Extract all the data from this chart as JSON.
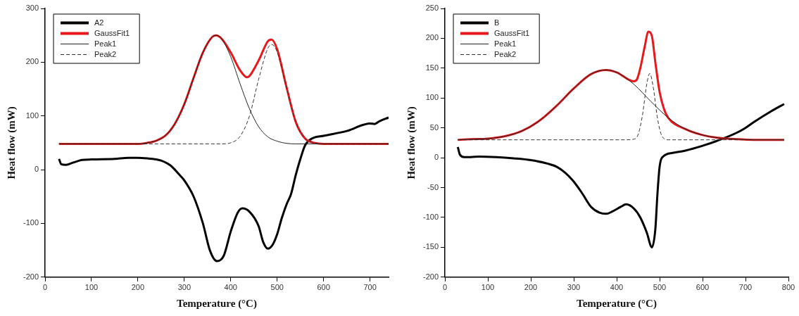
{
  "chart_data": [
    {
      "type": "line",
      "xlabel": "Temperature (°C)",
      "ylabel": "Heat flow (mW)",
      "xlim": [
        0,
        740
      ],
      "xticks": [
        0,
        100,
        200,
        300,
        400,
        500,
        600,
        700
      ],
      "ylim": [
        -200,
        300
      ],
      "yticks": [
        -200,
        -100,
        0,
        100,
        200,
        300
      ],
      "legend": "top left",
      "series": [
        {
          "name": "A2",
          "color": "#000000",
          "x": [
            30,
            35,
            45,
            60,
            80,
            100,
            150,
            180,
            200,
            220,
            240,
            250,
            270,
            290,
            300,
            320,
            340,
            355,
            370,
            385,
            400,
            415,
            425,
            440,
            460,
            470,
            480,
            490,
            500,
            510,
            520,
            530,
            540,
            550,
            560,
            575,
            600,
            650,
            700,
            710,
            720,
            740
          ],
          "values": [
            20,
            10,
            9,
            13,
            18,
            19,
            20,
            22,
            22,
            21,
            19,
            17,
            8,
            -10,
            -20,
            -50,
            -100,
            -150,
            -170,
            -160,
            -115,
            -80,
            -72,
            -78,
            -105,
            -135,
            -147,
            -140,
            -120,
            -90,
            -65,
            -45,
            -10,
            20,
            45,
            58,
            63,
            72,
            86,
            85,
            90,
            97
          ]
        },
        {
          "name": "GaussFit1",
          "color": "#e8191c",
          "x": [
            30,
            200,
            220,
            240,
            260,
            280,
            300,
            320,
            340,
            360,
            368,
            380,
            400,
            420,
            435,
            440,
            460,
            480,
            488,
            500,
            520,
            540,
            560,
            580,
            600,
            740
          ],
          "values": [
            48,
            48,
            50,
            54,
            64,
            86,
            122,
            171,
            218,
            247,
            250,
            244,
            218,
            185,
            172,
            174,
            203,
            239,
            242,
            224,
            154,
            89,
            58,
            50,
            48,
            48
          ]
        },
        {
          "name": "Peak1",
          "color": "#222222",
          "x": [
            30,
            200,
            220,
            240,
            260,
            280,
            300,
            320,
            340,
            360,
            368,
            380,
            400,
            420,
            440,
            460,
            480,
            500,
            520,
            540,
            740
          ],
          "values": [
            48,
            48,
            50,
            54,
            64,
            86,
            122,
            171,
            218,
            247,
            250,
            244,
            210,
            160,
            114,
            80,
            61,
            53,
            49,
            48,
            48
          ]
        },
        {
          "name": "Peak2",
          "color": "#333333",
          "line_style": "dashed",
          "x": [
            30,
            360,
            380,
            400,
            420,
            440,
            460,
            480,
            488,
            500,
            520,
            540,
            560,
            580,
            600,
            740
          ],
          "values": [
            48,
            48,
            48,
            50,
            62,
            99,
            168,
            226,
            233,
            219,
            153,
            89,
            58,
            50,
            48,
            48
          ]
        }
      ]
    },
    {
      "type": "line",
      "xlabel": "Temperature (°C)",
      "ylabel": "Heat flow (mW)",
      "xlim": [
        0,
        800
      ],
      "xticks": [
        0,
        100,
        200,
        300,
        400,
        500,
        600,
        700,
        800
      ],
      "ylim": [
        -200,
        250
      ],
      "yticks": [
        -200,
        -150,
        -100,
        -50,
        0,
        50,
        100,
        150,
        200,
        250
      ],
      "legend": "top left",
      "series": [
        {
          "name": "B",
          "color": "#000000",
          "x": [
            30,
            35,
            45,
            60,
            80,
            120,
            160,
            200,
            240,
            260,
            280,
            300,
            320,
            340,
            360,
            375,
            390,
            410,
            422,
            440,
            455,
            470,
            482,
            490,
            495,
            500,
            510,
            530,
            560,
            600,
            640,
            680,
            700,
            720,
            760,
            790
          ],
          "values": [
            18,
            5,
            1,
            1,
            2,
            1,
            -1,
            -4,
            -10,
            -15,
            -25,
            -40,
            -60,
            -82,
            -92,
            -94,
            -90,
            -82,
            -78,
            -85,
            -100,
            -125,
            -150,
            -120,
            -60,
            -15,
            3,
            8,
            12,
            20,
            30,
            42,
            50,
            60,
            78,
            90
          ]
        },
        {
          "name": "GaussFit1",
          "color": "#e8191c",
          "x": [
            30,
            60,
            100,
            140,
            180,
            220,
            260,
            300,
            340,
            375,
            400,
            440,
            447,
            455,
            465,
            474,
            482,
            490,
            500,
            510,
            520,
            560,
            600,
            640,
            680,
            720,
            790
          ],
          "values": [
            30,
            31,
            32,
            36,
            45,
            62,
            87,
            116,
            140,
            147,
            143,
            128,
            131,
            150,
            185,
            211,
            204,
            160,
            110,
            82,
            67,
            48,
            38,
            33,
            31,
            30,
            30
          ]
        },
        {
          "name": "Peak1",
          "color": "#222222",
          "x": [
            30,
            60,
            100,
            140,
            180,
            220,
            260,
            300,
            340,
            375,
            400,
            440,
            480,
            520,
            560,
            600,
            640,
            680,
            720,
            790
          ],
          "values": [
            30,
            31,
            32,
            36,
            45,
            62,
            87,
            116,
            140,
            147,
            143,
            123,
            94,
            67,
            48,
            38,
            33,
            31,
            30,
            30
          ]
        },
        {
          "name": "Peak2",
          "color": "#333333",
          "line_style": "dashed",
          "x": [
            30,
            420,
            440,
            450,
            460,
            470,
            477,
            485,
            495,
            505,
            520,
            790
          ],
          "values": [
            30,
            30,
            31,
            39,
            71,
            123,
            141,
            119,
            66,
            37,
            30,
            30
          ]
        }
      ]
    }
  ]
}
